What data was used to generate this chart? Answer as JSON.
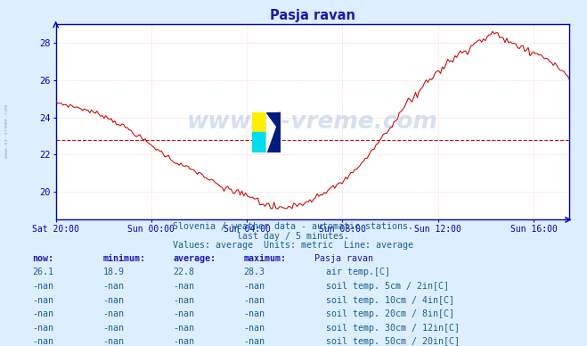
{
  "title": "Pasja ravan",
  "title_color": "#1a1aaa",
  "bg_color": "#ddeeff",
  "plot_bg_color": "#ffffff",
  "grid_color": "#ffbbbb",
  "axis_color": "#0000bb",
  "text_color": "#1a6090",
  "header_color": "#1a1aaa",
  "line_color": "#cc0000",
  "avg_line_color": "#dd0000",
  "avg_line_value": 22.8,
  "xlabel_ticks": [
    "Sat 20:00",
    "Sun 00:00",
    "Sun 04:00",
    "Sun 08:00",
    "Sun 12:00",
    "Sun 16:00"
  ],
  "x_positions": [
    0,
    4,
    8,
    12,
    16,
    20
  ],
  "xlim": [
    0,
    21.5
  ],
  "ylim": [
    18.5,
    29.0
  ],
  "yticks": [
    20,
    22,
    24,
    26,
    28
  ],
  "subtitle_line1": "Slovenia / weather data - automatic stations.",
  "subtitle_line2": "last day / 5 minutes.",
  "subtitle_line3": "Values: average  Units: metric  Line: average",
  "table_headers": [
    "now:",
    "minimum:",
    "average:",
    "maximum:",
    "Pasja ravan"
  ],
  "table_row1": [
    "26.1",
    "18.9",
    "22.8",
    "28.3"
  ],
  "table_row1_label": "air temp.[C]",
  "table_row1_color": "#cc0000",
  "table_rows_nan": [
    {
      "label": "soil temp. 5cm / 2in[C]",
      "color": "#c8a898"
    },
    {
      "label": "soil temp. 10cm / 4in[C]",
      "color": "#b08030"
    },
    {
      "label": "soil temp. 20cm / 8in[C]",
      "color": "#a07820"
    },
    {
      "label": "soil temp. 30cm / 12in[C]",
      "color": "#806040"
    },
    {
      "label": "soil temp. 50cm / 20in[C]",
      "color": "#604020"
    }
  ],
  "watermark": "www.si-vreme.com",
  "watermark_color": "#2255aa",
  "watermark_alpha": 0.18
}
